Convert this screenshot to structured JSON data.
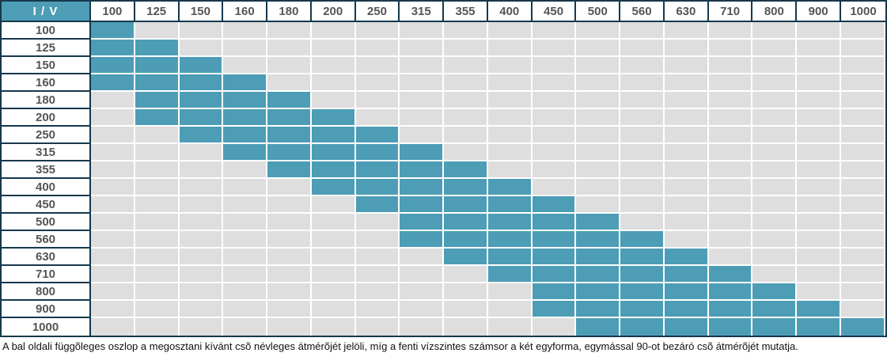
{
  "chart_data": {
    "type": "heatmap",
    "title": "",
    "corner_label": "I / V",
    "columns": [
      "100",
      "125",
      "150",
      "160",
      "180",
      "200",
      "250",
      "315",
      "355",
      "400",
      "450",
      "500",
      "560",
      "630",
      "710",
      "800",
      "900",
      "1000"
    ],
    "rows": [
      {
        "label": "100",
        "active": [
          "100"
        ]
      },
      {
        "label": "125",
        "active": [
          "100",
          "125"
        ]
      },
      {
        "label": "150",
        "active": [
          "100",
          "125",
          "150"
        ]
      },
      {
        "label": "160",
        "active": [
          "100",
          "125",
          "150",
          "160"
        ]
      },
      {
        "label": "180",
        "active": [
          "125",
          "150",
          "160",
          "180"
        ]
      },
      {
        "label": "200",
        "active": [
          "125",
          "150",
          "160",
          "180",
          "200"
        ]
      },
      {
        "label": "250",
        "active": [
          "150",
          "160",
          "180",
          "200",
          "250"
        ]
      },
      {
        "label": "315",
        "active": [
          "160",
          "180",
          "200",
          "250",
          "315"
        ]
      },
      {
        "label": "355",
        "active": [
          "180",
          "200",
          "250",
          "315",
          "355"
        ]
      },
      {
        "label": "400",
        "active": [
          "200",
          "250",
          "315",
          "355",
          "400"
        ]
      },
      {
        "label": "450",
        "active": [
          "250",
          "315",
          "355",
          "400",
          "450"
        ]
      },
      {
        "label": "500",
        "active": [
          "315",
          "355",
          "400",
          "450",
          "500"
        ]
      },
      {
        "label": "560",
        "active": [
          "315",
          "355",
          "400",
          "450",
          "500",
          "560"
        ]
      },
      {
        "label": "630",
        "active": [
          "355",
          "400",
          "450",
          "500",
          "560",
          "630"
        ]
      },
      {
        "label": "710",
        "active": [
          "400",
          "450",
          "500",
          "560",
          "630",
          "710"
        ]
      },
      {
        "label": "800",
        "active": [
          "450",
          "500",
          "560",
          "630",
          "710",
          "800"
        ]
      },
      {
        "label": "900",
        "active": [
          "450",
          "500",
          "560",
          "630",
          "710",
          "800",
          "900"
        ]
      },
      {
        "label": "1000",
        "active": [
          "500",
          "560",
          "630",
          "710",
          "800",
          "900",
          "1000"
        ]
      }
    ],
    "legend": "none",
    "grid": "white 2px lines between cells",
    "caption": "A bal oldali függõleges oszlop a megosztani kívánt csõ névleges átmérõjét jelöli, míg a fenti vízszintes számsor a két egyforma, egymással 90-ot bezáró csõ átmérõjét mutatja.",
    "colors": {
      "active": "#4c9db5",
      "inactive": "#dedede",
      "border": "#16384d",
      "header_text": "#555555",
      "corner_bg": "#4c9db5",
      "corner_text": "#ffffff"
    }
  }
}
